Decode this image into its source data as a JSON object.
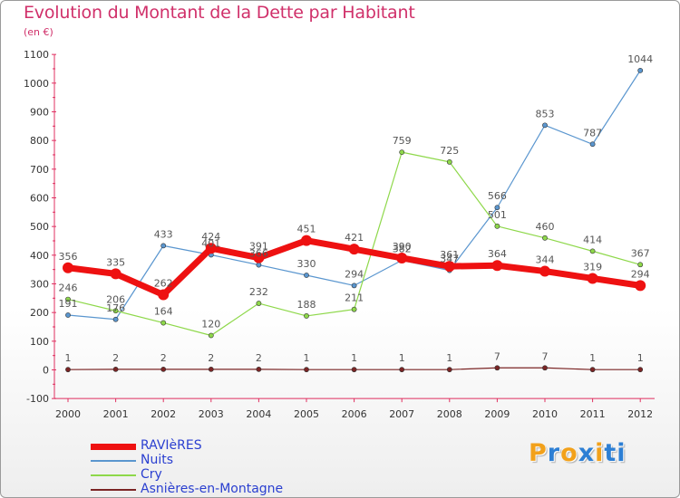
{
  "title": "Evolution du Montant de la Dette par Habitant",
  "subtitle": "(en €)",
  "brand": {
    "text": "Proxiti",
    "letter_colors": [
      "#f2a11b",
      "#2d7fd4",
      "#f2a11b",
      "#2d7fd4",
      "#f2a11b",
      "#2d7fd4",
      "#2d7fd4"
    ]
  },
  "chart_data": {
    "type": "line",
    "title": "Evolution du Montant de la Dette par Habitant",
    "ylabel": "(en €)",
    "x": [
      "2000",
      "2001",
      "2002",
      "2003",
      "2004",
      "2005",
      "2006",
      "2007",
      "2008",
      "2009",
      "2010",
      "2011",
      "2012"
    ],
    "ylim": [
      -100,
      1100
    ],
    "yticks": [
      -100,
      0,
      100,
      200,
      300,
      400,
      500,
      600,
      700,
      800,
      900,
      1000,
      1100
    ],
    "grid": false,
    "legend_position": "bottom-left",
    "series": [
      {
        "name": "RAVIèRES",
        "color": "#ee1111",
        "values": [
          356,
          335,
          262,
          424,
          391,
          451,
          421,
          390,
          361,
          364,
          344,
          319,
          294
        ]
      },
      {
        "name": "Nuits",
        "color": "#5a96cf",
        "values": [
          191,
          176,
          433,
          401,
          366,
          330,
          294,
          382,
          347,
          566,
          853,
          787,
          1044
        ]
      },
      {
        "name": "Cry",
        "color": "#8ed84a",
        "values": [
          246,
          206,
          164,
          120,
          232,
          188,
          211,
          759,
          725,
          501,
          460,
          414,
          367
        ]
      },
      {
        "name": "Asnières-en-Montagne",
        "color": "#7b2525",
        "values": [
          1,
          2,
          2,
          2,
          2,
          1,
          1,
          1,
          1,
          7,
          7,
          1,
          1
        ]
      }
    ]
  }
}
